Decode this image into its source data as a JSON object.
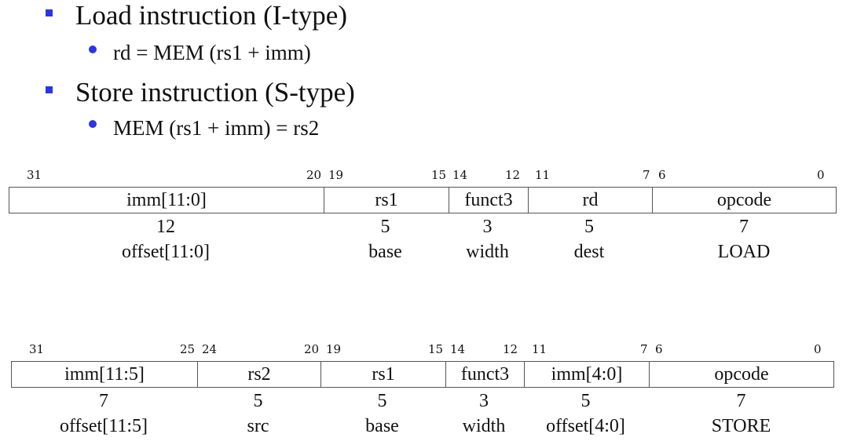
{
  "bullet_color": "#2b35e6",
  "bullets": [
    {
      "level": 1,
      "text": "Load instruction (I-type)"
    },
    {
      "level": 2,
      "text": "rd = MEM (rs1 + imm)"
    },
    {
      "level": 1,
      "text": "Store instruction (S-type)"
    },
    {
      "level": 2,
      "text": "MEM (rs1 + imm) = rs2"
    }
  ],
  "i_type": {
    "bit_labels": [
      "31",
      "20",
      "19",
      "15",
      "14",
      "12",
      "11",
      "7",
      "6",
      "0"
    ],
    "fields": [
      {
        "name": "imm[11:0]",
        "width": "12",
        "meaning": "offset[11:0]"
      },
      {
        "name": "rs1",
        "width": "5",
        "meaning": "base"
      },
      {
        "name": "funct3",
        "width": "3",
        "meaning": "width"
      },
      {
        "name": "rd",
        "width": "5",
        "meaning": "dest"
      },
      {
        "name": "opcode",
        "width": "7",
        "meaning": "LOAD"
      }
    ]
  },
  "s_type": {
    "bit_labels": [
      "31",
      "25",
      "24",
      "20",
      "19",
      "15",
      "14",
      "12",
      "11",
      "7",
      "6",
      "0"
    ],
    "fields": [
      {
        "name": "imm[11:5]",
        "width": "7",
        "meaning": "offset[11:5]"
      },
      {
        "name": "rs2",
        "width": "5",
        "meaning": "src"
      },
      {
        "name": "rs1",
        "width": "5",
        "meaning": "base"
      },
      {
        "name": "funct3",
        "width": "3",
        "meaning": "width"
      },
      {
        "name": "imm[4:0]",
        "width": "5",
        "meaning": "offset[4:0]"
      },
      {
        "name": "opcode",
        "width": "7",
        "meaning": "STORE"
      }
    ]
  }
}
